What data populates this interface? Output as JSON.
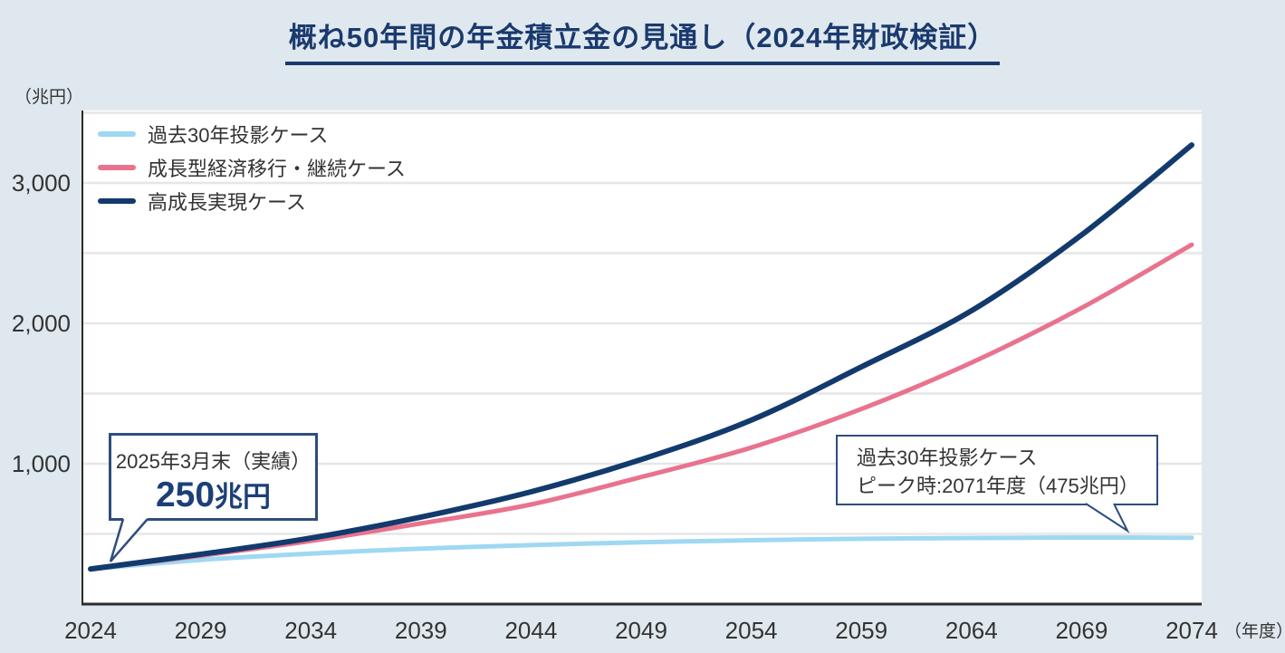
{
  "header": {
    "title": "概ね50年間の年金積立金の見通し（2024年財政検証）"
  },
  "colors": {
    "background": "#dfe8ee",
    "plot_background": "#ffffff",
    "gridline": "#e6e6e6",
    "axis": "#2a2a2a",
    "title_navy": "#1a3a6e",
    "callout_border": "#2e4d80",
    "callout_value": "#1c3f77"
  },
  "chart_data": {
    "type": "line",
    "title": "概ね50年間の年金積立金の見通し（2024年財政検証）",
    "y_unit": "（兆円）",
    "x_unit": "（年度）",
    "x": [
      2024,
      2029,
      2034,
      2039,
      2044,
      2049,
      2054,
      2059,
      2064,
      2069,
      2074
    ],
    "x_tick_labels": [
      "2024",
      "2029",
      "2034",
      "2039",
      "2044",
      "2049",
      "2054",
      "2059",
      "2064",
      "2069",
      "2074"
    ],
    "y_ticks": [
      {
        "label": "1,000",
        "value": 1000
      },
      {
        "label": "2,000",
        "value": 2000
      },
      {
        "label": "3,000",
        "value": 3000
      }
    ],
    "ylim": [
      0,
      3530
    ],
    "grid_interval": 500,
    "grid": "horizontal-only",
    "legend_position": "top-left-inside",
    "series": [
      {
        "name": "過去30年投影ケース",
        "color": "#9fd8f2",
        "width": 5,
        "values": [
          250,
          315,
          360,
          395,
          420,
          440,
          455,
          465,
          471,
          474,
          473
        ]
      },
      {
        "name": "成長型経済移行・継続ケース",
        "color": "#e9738f",
        "width": 5,
        "values": [
          250,
          345,
          450,
          575,
          710,
          905,
          1115,
          1390,
          1720,
          2110,
          2560
        ]
      },
      {
        "name": "高成長実現ケース",
        "color": "#123a6d",
        "width": 6,
        "values": [
          250,
          355,
          470,
          620,
          800,
          1030,
          1310,
          1690,
          2090,
          2630,
          3270
        ]
      }
    ],
    "annotations": [
      {
        "id": "actual-2025",
        "line1": "2025年3月末（実績）",
        "line2_value": "250",
        "line2_unit": "兆円",
        "points_to": {
          "year": 2024,
          "value": 250
        }
      },
      {
        "id": "past30-peak",
        "line1": "過去30年投影ケース",
        "line2": "ピーク時:2071年度（475兆円）",
        "points_to": {
          "year": 2071,
          "value": 475
        }
      }
    ]
  }
}
